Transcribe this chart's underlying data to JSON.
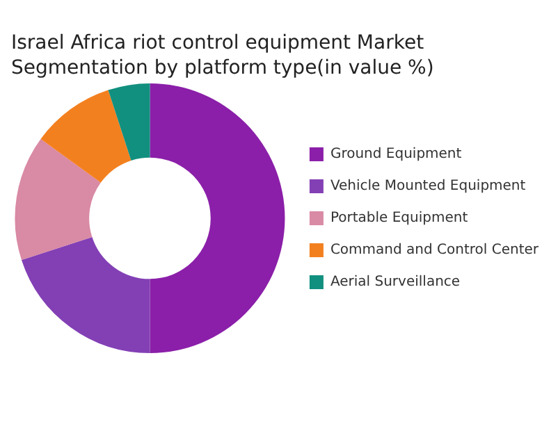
{
  "chart_data": {
    "type": "donut",
    "title": "Israel Africa riot control equipment Market Segmentation by platform type(in value %)",
    "categories": [
      "Ground Equipment",
      "Vehicle Mounted Equipment",
      "Portable Equipment",
      "Command and Control Center",
      "Aerial Surveillance"
    ],
    "values": [
      50,
      20,
      15,
      10,
      5
    ],
    "colors": [
      "#8b1fa9",
      "#8340b5",
      "#d98aa4",
      "#f3801f",
      "#12907f"
    ],
    "legend": "right"
  }
}
